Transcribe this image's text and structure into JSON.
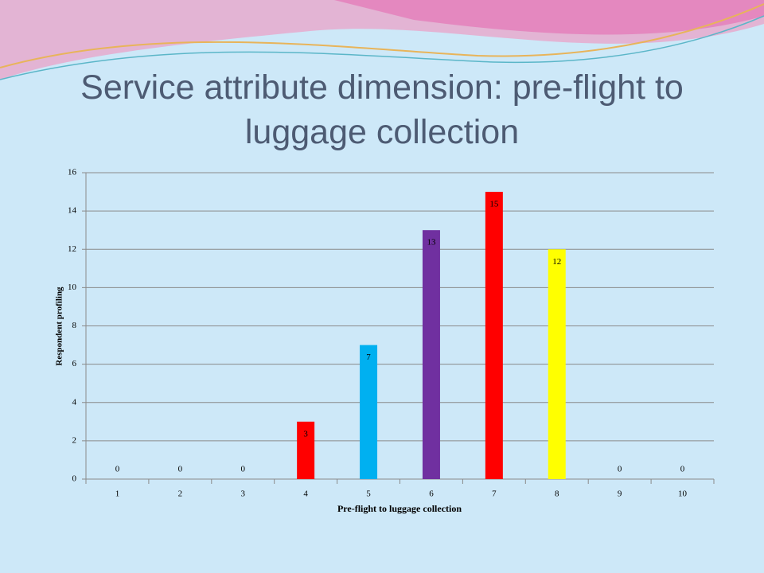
{
  "chart_data": {
    "type": "bar",
    "title": "Service attribute dimension: pre-flight to luggage collection",
    "x_label": "Pre-flight to luggage collection",
    "y_label": "Respondent profiling",
    "categories": [
      "1",
      "2",
      "3",
      "4",
      "5",
      "6",
      "7",
      "8",
      "9",
      "10"
    ],
    "values": [
      0,
      0,
      0,
      3,
      7,
      13,
      15,
      12,
      0,
      0
    ],
    "colors": [
      "#ff0000",
      "#ff0000",
      "#ff0000",
      "#ff0000",
      "#00b0f0",
      "#7030a0",
      "#ff0000",
      "#ffff00",
      "#ff0000",
      "#ff0000"
    ],
    "ylim": [
      0,
      16
    ],
    "yticks": [
      0,
      2,
      4,
      6,
      8,
      10,
      12,
      14,
      16
    ],
    "grid": true
  }
}
